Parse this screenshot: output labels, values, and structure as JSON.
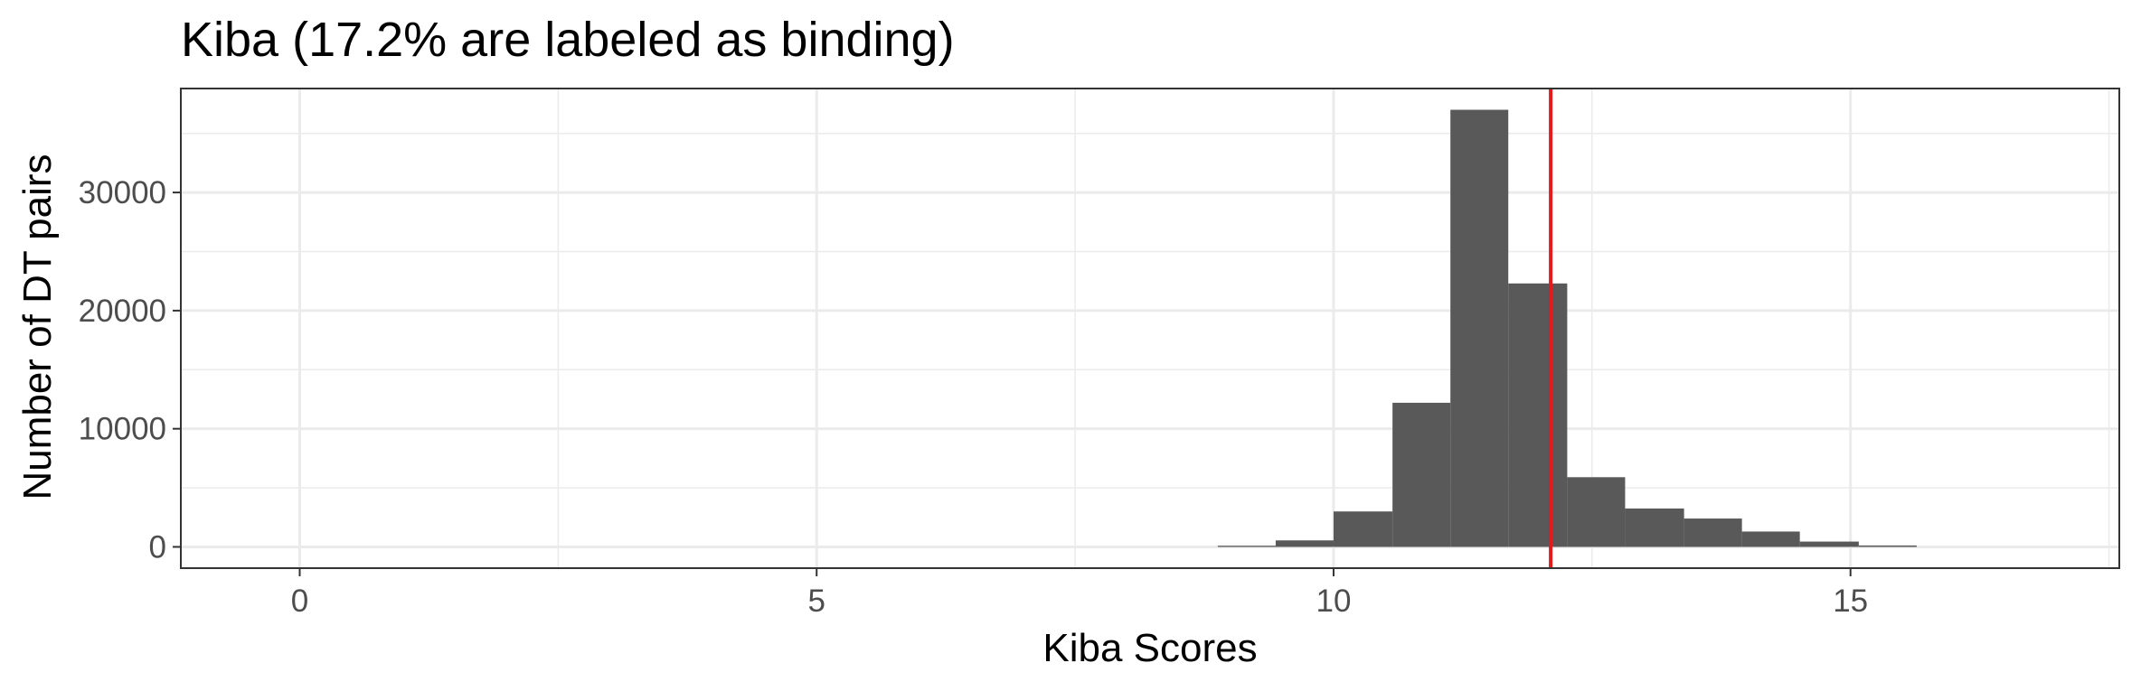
{
  "chart_data": {
    "type": "bar",
    "title": "Kiba (17.2% are labeled as binding)",
    "xlabel": "Kiba Scores",
    "ylabel": "Number of DT pairs",
    "xlim": [
      -1.15,
      17.6
    ],
    "ylim": [
      -1800,
      38800
    ],
    "x_ticks": [
      0,
      5,
      10,
      15
    ],
    "y_ticks": [
      0,
      10000,
      20000,
      30000
    ],
    "grid": true,
    "bin_width": 0.563,
    "bins": [
      {
        "x_start": 8.88,
        "x_end": 9.44,
        "count": 100
      },
      {
        "x_start": 9.44,
        "x_end": 10.0,
        "count": 550
      },
      {
        "x_start": 10.0,
        "x_end": 10.57,
        "count": 3000
      },
      {
        "x_start": 10.57,
        "x_end": 11.13,
        "count": 12200
      },
      {
        "x_start": 11.13,
        "x_end": 11.69,
        "count": 37000
      },
      {
        "x_start": 11.69,
        "x_end": 12.26,
        "count": 22300
      },
      {
        "x_start": 12.26,
        "x_end": 12.82,
        "count": 5900
      },
      {
        "x_start": 12.82,
        "x_end": 13.39,
        "count": 3250
      },
      {
        "x_start": 13.39,
        "x_end": 13.95,
        "count": 2400
      },
      {
        "x_start": 13.95,
        "x_end": 14.51,
        "count": 1300
      },
      {
        "x_start": 14.51,
        "x_end": 15.08,
        "count": 450
      },
      {
        "x_start": 15.08,
        "x_end": 15.64,
        "count": 120
      }
    ],
    "threshold": {
      "x": 12.1,
      "color": "#e41a1c"
    },
    "bar_color": "#595959",
    "grid_color": "#ebebeb"
  }
}
